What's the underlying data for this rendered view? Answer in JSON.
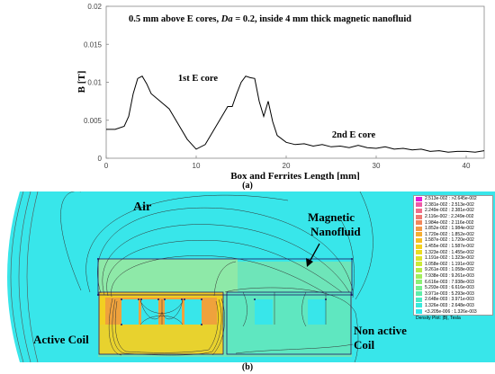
{
  "chart_data": {
    "type": "line",
    "title": "0.5 mm above E cores, Da = 0.2, inside 4 mm thick magnetic nanofluid",
    "title_parts": {
      "pre": "0.5 mm above E cores, ",
      "var": "Da",
      "post": " = 0.2, inside 4 mm thick magnetic nanofluid"
    },
    "xlabel": "Box and Ferrites Length [mm]",
    "ylabel": "B [T]",
    "xlim": [
      0,
      42
    ],
    "ylim": [
      0,
      0.02
    ],
    "xticks": [
      "0",
      "10",
      "20",
      "30",
      "40"
    ],
    "xtick_values": [
      0,
      10,
      20,
      30,
      40
    ],
    "yticks": [
      "0",
      "0.005",
      "0.01",
      "0.015",
      "0.02"
    ],
    "ytick_values": [
      0,
      0.005,
      0.01,
      0.015,
      0.02
    ],
    "series": [
      {
        "color": "#000000",
        "x": [
          0,
          1,
          2,
          2.5,
          3,
          3.5,
          4,
          4.5,
          5,
          6,
          7,
          8,
          9,
          10,
          11,
          12,
          13,
          13.5,
          14,
          14.5,
          15,
          15.5,
          16,
          16.5,
          17,
          17.5,
          18,
          18.5,
          19,
          20,
          21,
          22,
          23,
          24,
          25,
          26,
          27,
          28,
          29,
          30,
          31,
          32,
          33,
          34,
          35,
          36,
          37,
          38,
          39,
          40,
          41,
          42
        ],
        "y": [
          0.0038,
          0.0038,
          0.0042,
          0.0055,
          0.0085,
          0.0105,
          0.0108,
          0.0098,
          0.0085,
          0.0075,
          0.0065,
          0.0045,
          0.0025,
          0.0012,
          0.0018,
          0.0038,
          0.0058,
          0.0068,
          0.0068,
          0.0085,
          0.01,
          0.0108,
          0.0106,
          0.0105,
          0.0075,
          0.0055,
          0.0075,
          0.0048,
          0.003,
          0.0021,
          0.0018,
          0.0019,
          0.0016,
          0.0018,
          0.0015,
          0.0016,
          0.0014,
          0.0017,
          0.0014,
          0.0013,
          0.0015,
          0.0012,
          0.0013,
          0.0011,
          0.0012,
          0.0009,
          0.001,
          0.0008,
          0.0009,
          0.0009,
          0.0008,
          0.001
        ]
      }
    ],
    "annotations": [
      {
        "text": "1st E core",
        "x": 10.2,
        "y": 0.0102
      },
      {
        "text": "2nd E core",
        "x": 27.5,
        "y": 0.0027
      }
    ],
    "grid": false
  },
  "captions": {
    "a": "(a)",
    "b": "(b)"
  },
  "field_plot": {
    "labels": {
      "air": "Air",
      "magnetic": "Magnetic",
      "nanofluid": "Nanofluid",
      "active_coil": "Active Coil",
      "non": "Non active",
      "coil": "Coil"
    },
    "legend": {
      "entries": [
        {
          "text": "2.513e-002 : >2.645e-002",
          "color": "#e21ad9"
        },
        {
          "text": "2.381e-002 : 2.513e-002",
          "color": "#ef5aa6"
        },
        {
          "text": "2.249e-002 : 2.381e-002",
          "color": "#ef6f8a"
        },
        {
          "text": "2.116e-002 : 2.249e-002",
          "color": "#f07a72"
        },
        {
          "text": "1.984e-002 : 2.116e-002",
          "color": "#f2885c"
        },
        {
          "text": "1.852e-002 : 1.984e-002",
          "color": "#f39a47"
        },
        {
          "text": "1.720e-002 : 1.852e-002",
          "color": "#f5ae32"
        },
        {
          "text": "1.587e-002 : 1.720e-002",
          "color": "#f6c024"
        },
        {
          "text": "1.455e-002 : 1.587e-002",
          "color": "#f4d21e"
        },
        {
          "text": "1.323e-002 : 1.455e-002",
          "color": "#eadc22"
        },
        {
          "text": "1.191e-002 : 1.323e-002",
          "color": "#dde42c"
        },
        {
          "text": "1.058e-002 : 1.191e-002",
          "color": "#cbe939"
        },
        {
          "text": "9.261e-003 : 1.058e-002",
          "color": "#b6ec4a"
        },
        {
          "text": "7.938e-003 : 9.261e-003",
          "color": "#a1ee5f"
        },
        {
          "text": "6.616e-003 : 7.938e-003",
          "color": "#8cef76"
        },
        {
          "text": "5.293e-003 : 6.616e-003",
          "color": "#76ef8f"
        },
        {
          "text": "3.971e-003 : 5.293e-003",
          "color": "#60eeaa"
        },
        {
          "text": "2.648e-003 : 3.971e-003",
          "color": "#4becc5"
        },
        {
          "text": "1.326e-003 : 2.648e-003",
          "color": "#39eadc"
        },
        {
          "text": "<3.205e-006 : 1.326e-003",
          "color": "#2fe8ea"
        }
      ],
      "footer": "Density Plot: |B|, Tesla"
    },
    "colors": {
      "background": "#38e6ea",
      "nanofluid": "#6ee5b9",
      "core_hot": "#f0d020"
    }
  }
}
